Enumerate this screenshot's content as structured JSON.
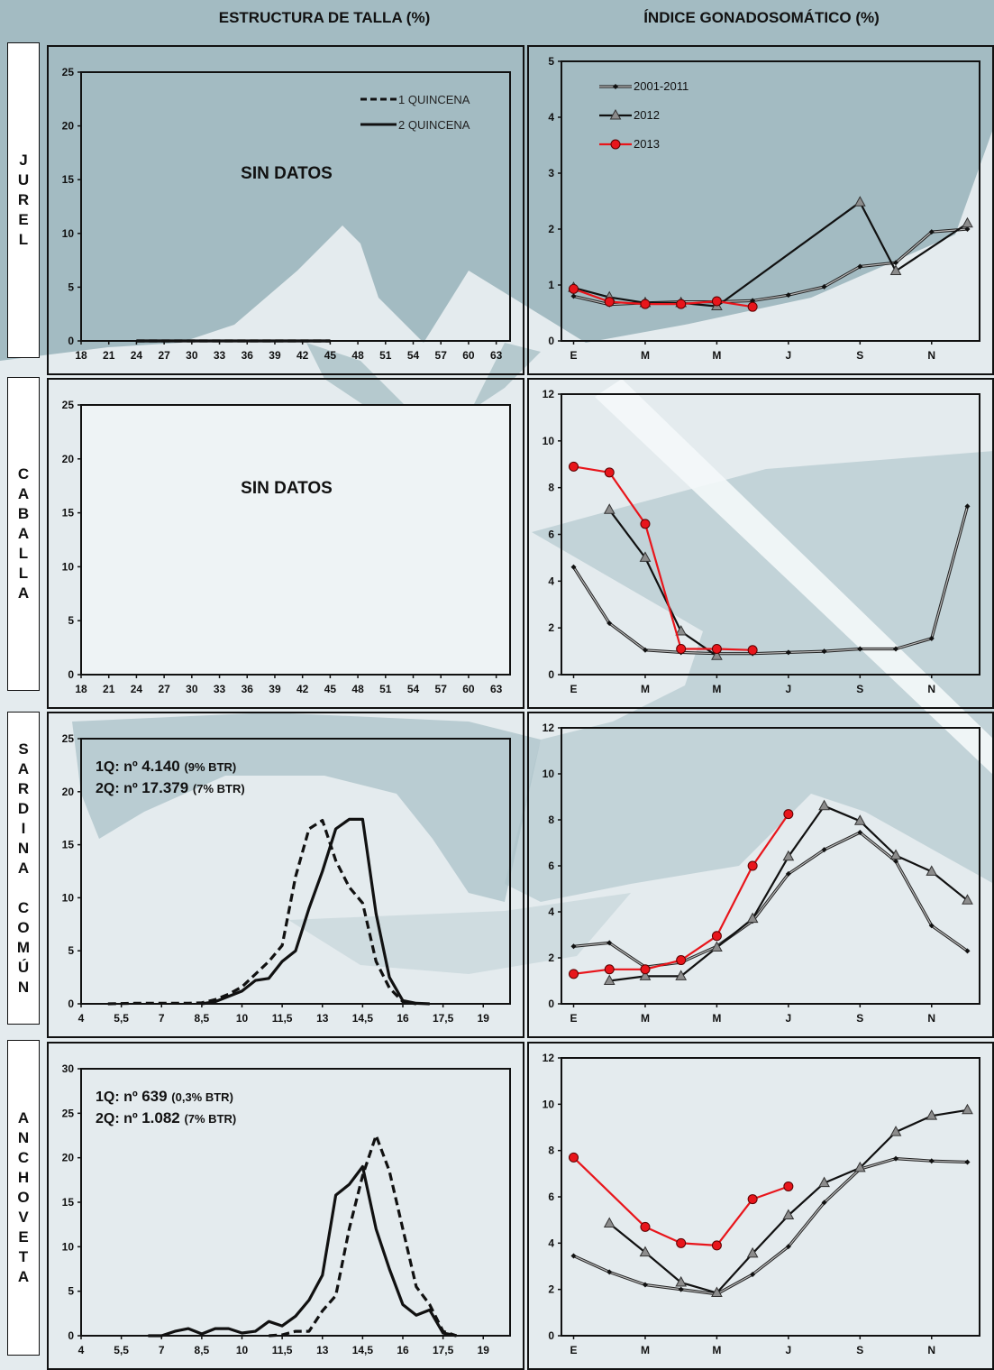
{
  "headers": {
    "left": "ESTRUCTURA DE TALLA (%)",
    "right": "ÍNDICE GONADOSOMÁTICO (%)"
  },
  "colors": {
    "series_2013": "#e8151b",
    "series_2012": "#111111",
    "series_hist": "#222222",
    "marker_2012": "#8c8c8c"
  },
  "species": [
    {
      "id": "jurel",
      "label": "JUREL"
    },
    {
      "id": "caballa",
      "label": "CABALLA"
    },
    {
      "id": "sardina",
      "label": "SARDINA COMÚN"
    },
    {
      "id": "anchoveta",
      "label": "ANCHOVETA"
    }
  ],
  "chart_data": [
    {
      "id": "jurel-talla",
      "type": "line",
      "x_ticks": [
        18,
        21,
        24,
        27,
        30,
        33,
        36,
        39,
        42,
        45,
        48,
        51,
        54,
        57,
        60,
        63
      ],
      "xlim": [
        18,
        64.5
      ],
      "ylim": [
        0,
        25
      ],
      "y_ticks": [
        0,
        5,
        10,
        15,
        20,
        25
      ],
      "annotation": "SIN DATOS",
      "legend": [
        {
          "name": "1 QUINCENA",
          "dash": "dashed"
        },
        {
          "name": "2 QUINCENA",
          "dash": "solid"
        }
      ],
      "series": [
        {
          "name": "1 QUINCENA",
          "dash": "dashed",
          "x": [
            24,
            45
          ],
          "y": [
            0,
            0
          ]
        },
        {
          "name": "2 QUINCENA",
          "dash": "solid",
          "x": [
            24,
            45
          ],
          "y": [
            0,
            0
          ]
        }
      ]
    },
    {
      "id": "jurel-igs",
      "type": "line",
      "x_ticks": [
        "E",
        "M",
        "M",
        "J",
        "S",
        "N"
      ],
      "ylim": [
        0,
        5
      ],
      "y_ticks": [
        0,
        1,
        2,
        3,
        4,
        5
      ],
      "legend": [
        "2001-2011",
        "2012",
        "2013"
      ],
      "series": [
        {
          "name": "2001-2011",
          "x": [
            1,
            1.5,
            2,
            2.5,
            3,
            3.5,
            4,
            4.5,
            5,
            5.5,
            6,
            6.5
          ],
          "y": [
            0.8,
            0.65,
            0.68,
            0.7,
            0.7,
            0.72,
            0.82,
            0.97,
            1.33,
            1.4,
            1.95,
            2.0
          ]
        },
        {
          "name": "2012",
          "x": [
            1,
            1.5,
            2,
            2.5,
            3,
            5,
            5.5,
            6.5
          ],
          "y": [
            0.95,
            0.78,
            0.68,
            0.68,
            0.62,
            2.48,
            1.25,
            2.1
          ]
        },
        {
          "name": "2013",
          "x": [
            1,
            1.5,
            2,
            2.5,
            3,
            3.5
          ],
          "y": [
            0.93,
            0.7,
            0.66,
            0.66,
            0.71,
            0.61
          ]
        }
      ]
    },
    {
      "id": "caballa-talla",
      "type": "line",
      "x_ticks": [
        18,
        21,
        24,
        27,
        30,
        33,
        36,
        39,
        42,
        45,
        48,
        51,
        54,
        57,
        60,
        63
      ],
      "xlim": [
        18,
        64.5
      ],
      "ylim": [
        0,
        25
      ],
      "y_ticks": [
        0,
        5,
        10,
        15,
        20,
        25
      ],
      "annotation": "SIN DATOS",
      "series": []
    },
    {
      "id": "caballa-igs",
      "type": "line",
      "x_ticks": [
        "E",
        "M",
        "M",
        "J",
        "S",
        "N"
      ],
      "ylim": [
        0,
        12
      ],
      "y_ticks": [
        0,
        2,
        4,
        6,
        8,
        10,
        12
      ],
      "series": [
        {
          "name": "2001-2011",
          "x": [
            1,
            1.5,
            2,
            2.5,
            3,
            3.5,
            4,
            4.5,
            5,
            5.5,
            6,
            6.5
          ],
          "y": [
            4.6,
            2.2,
            1.05,
            0.95,
            0.9,
            0.9,
            0.95,
            1.0,
            1.1,
            1.1,
            1.55,
            7.2
          ]
        },
        {
          "name": "2012",
          "x": [
            1.5,
            2,
            2.5,
            3
          ],
          "y": [
            7.05,
            5.0,
            1.85,
            0.8
          ]
        },
        {
          "name": "2013",
          "x": [
            1,
            1.5,
            2,
            2.5,
            3,
            3.5
          ],
          "y": [
            8.9,
            8.65,
            6.45,
            1.1,
            1.1,
            1.05
          ]
        }
      ]
    },
    {
      "id": "sardina-talla",
      "type": "line",
      "x_ticks": [
        "4",
        "5,5",
        "7",
        "8,5",
        "10",
        "11,5",
        "13",
        "14,5",
        "16",
        "17,5",
        "19"
      ],
      "xlim": [
        4,
        20
      ],
      "ylim": [
        0,
        25
      ],
      "y_ticks": [
        0,
        5,
        10,
        15,
        20,
        25
      ],
      "info": [
        {
          "label": "1Q: nº",
          "value": "4.140",
          "note": "(9% BTR)"
        },
        {
          "label": "2Q: nº",
          "value": "17.379",
          "note": "(7% BTR)"
        }
      ],
      "series": [
        {
          "name": "1 QUINCENA",
          "dash": "dashed",
          "x": [
            5,
            6,
            7,
            8,
            8.5,
            9,
            9.5,
            10,
            10.5,
            11,
            11.5,
            12,
            12.5,
            13,
            13.5,
            14,
            14.5,
            15,
            15.5,
            16,
            16.5
          ],
          "y": [
            0,
            0.05,
            0.05,
            0.05,
            0.1,
            0.4,
            0.9,
            1.6,
            2.8,
            4.0,
            5.5,
            12.0,
            16.5,
            17.3,
            13.5,
            11.0,
            9.5,
            4.0,
            1.5,
            0.2,
            0
          ]
        },
        {
          "name": "2 QUINCENA",
          "dash": "solid",
          "x": [
            8.5,
            9,
            9.5,
            10,
            10.5,
            11,
            11.5,
            12,
            12.5,
            13,
            13.5,
            14,
            14.5,
            15,
            15.5,
            16,
            16.5,
            17
          ],
          "y": [
            0,
            0.2,
            0.7,
            1.2,
            2.2,
            2.4,
            4.0,
            5.0,
            9.0,
            12.5,
            16.5,
            17.4,
            17.4,
            8.5,
            2.5,
            0.3,
            0.05,
            0
          ]
        }
      ]
    },
    {
      "id": "sardina-igs",
      "type": "line",
      "x_ticks": [
        "E",
        "M",
        "M",
        "J",
        "S",
        "N"
      ],
      "ylim": [
        0,
        12
      ],
      "y_ticks": [
        0,
        2,
        4,
        6,
        8,
        10,
        12
      ],
      "series": [
        {
          "name": "2001-2011",
          "x": [
            1,
            1.5,
            2,
            2.5,
            3,
            3.5,
            4,
            4.5,
            5,
            5.5,
            6,
            6.5
          ],
          "y": [
            2.5,
            2.65,
            1.6,
            1.8,
            2.5,
            3.6,
            5.65,
            6.7,
            7.45,
            6.2,
            3.4,
            2.3
          ]
        },
        {
          "name": "2012",
          "x": [
            1.5,
            2,
            2.5,
            3,
            3.5,
            4,
            4.5,
            5,
            5.5,
            6,
            6.5
          ],
          "y": [
            1.0,
            1.2,
            1.2,
            2.45,
            3.7,
            6.4,
            8.6,
            7.95,
            6.45,
            5.75,
            4.5
          ]
        },
        {
          "name": "2013",
          "x": [
            1,
            1.5,
            2,
            2.5,
            3,
            3.5,
            4
          ],
          "y": [
            1.3,
            1.5,
            1.5,
            1.9,
            2.95,
            6.0,
            8.25
          ]
        }
      ]
    },
    {
      "id": "anchoveta-talla",
      "type": "line",
      "x_ticks": [
        "4",
        "5,5",
        "7",
        "8,5",
        "10",
        "11,5",
        "13",
        "14,5",
        "16",
        "17,5",
        "19"
      ],
      "xlim": [
        4,
        20
      ],
      "ylim": [
        0,
        30
      ],
      "y_ticks": [
        0,
        5,
        10,
        15,
        20,
        25,
        30
      ],
      "info": [
        {
          "label": "1Q: nº",
          "value": "639",
          "note": "(0,3% BTR)"
        },
        {
          "label": "2Q: nº",
          "value": "1.082",
          "note": "(7% BTR)"
        }
      ],
      "series": [
        {
          "name": "1 QUINCENA",
          "dash": "dashed",
          "x": [
            11,
            11.5,
            12,
            12.5,
            13,
            13.5,
            14,
            14.5,
            15,
            15.5,
            16,
            16.5,
            17,
            17.5,
            18
          ],
          "y": [
            0,
            0.1,
            0.5,
            0.5,
            2.8,
            4.5,
            12.0,
            18.0,
            22.5,
            18.5,
            12.0,
            5.5,
            3.5,
            0.5,
            0
          ]
        },
        {
          "name": "2 QUINCENA",
          "dash": "solid",
          "x": [
            6.5,
            7,
            7.5,
            8,
            8.5,
            9,
            9.5,
            10,
            10.5,
            11,
            11.5,
            12,
            12.5,
            13,
            13.5,
            14,
            14.5,
            15,
            15.5,
            16,
            16.5,
            17,
            17.5,
            18
          ],
          "y": [
            0,
            0,
            0.5,
            0.8,
            0.2,
            0.8,
            0.8,
            0.3,
            0.5,
            1.6,
            1.1,
            2.2,
            4.0,
            6.8,
            15.8,
            17.0,
            19.0,
            12.0,
            7.5,
            3.5,
            2.3,
            2.9,
            0.3,
            0
          ]
        }
      ]
    },
    {
      "id": "anchoveta-igs",
      "type": "line",
      "x_ticks": [
        "E",
        "M",
        "M",
        "J",
        "S",
        "N"
      ],
      "ylim": [
        0,
        12
      ],
      "y_ticks": [
        0,
        2,
        4,
        6,
        8,
        10,
        12
      ],
      "series": [
        {
          "name": "2001-2011",
          "x": [
            1,
            1.5,
            2,
            2.5,
            3,
            3.5,
            4,
            4.5,
            5,
            5.5,
            6,
            6.5
          ],
          "y": [
            3.45,
            2.75,
            2.2,
            2.0,
            1.8,
            2.65,
            3.85,
            5.75,
            7.2,
            7.65,
            7.55,
            7.5
          ]
        },
        {
          "name": "2012",
          "x": [
            1.5,
            2,
            2.5,
            3,
            3.5,
            4,
            4.5,
            5,
            5.5,
            6,
            6.5
          ],
          "y": [
            4.85,
            3.6,
            2.3,
            1.85,
            3.55,
            5.2,
            6.6,
            7.25,
            8.8,
            9.5,
            9.75
          ]
        },
        {
          "name": "2013",
          "x": [
            1,
            2,
            2.5,
            3,
            3.5,
            4
          ],
          "y": [
            7.7,
            4.7,
            4.0,
            3.9,
            5.9,
            6.45
          ]
        }
      ]
    }
  ]
}
